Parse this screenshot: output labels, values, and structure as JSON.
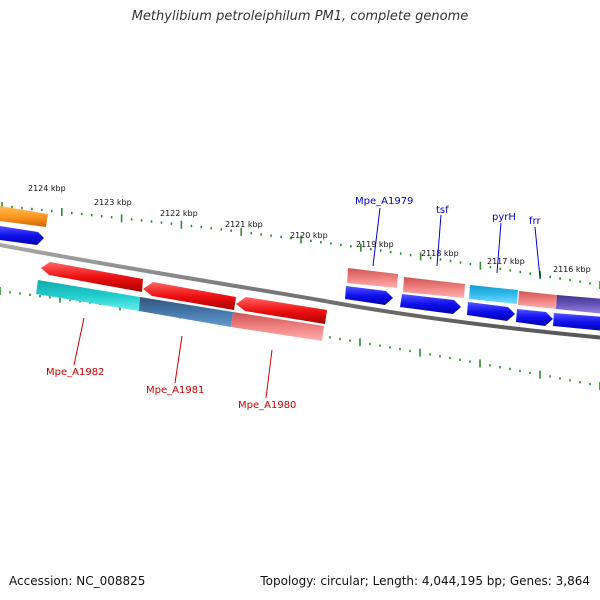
{
  "title": "Methylibium petroleiphilum PM1, complete genome",
  "footer": {
    "accession": "Accession: NC_008825",
    "topology": "Topology: circular; Length: 4,044,195 bp; Genes: 3,864"
  },
  "ticks": [
    {
      "label": "2124 kbp"
    },
    {
      "label": "2123 kbp"
    },
    {
      "label": "2122 kbp"
    },
    {
      "label": "2121 kbp"
    },
    {
      "label": "2120 kbp"
    },
    {
      "label": "2119 kbp"
    },
    {
      "label": "2118 kbp"
    },
    {
      "label": "2117 kbp"
    },
    {
      "label": "2116 kbp"
    }
  ],
  "gene_labels": [
    {
      "name": "Mpe_A1979",
      "strand": "forward",
      "color": "#0000cc"
    },
    {
      "name": "tsf",
      "strand": "forward",
      "color": "#0000cc"
    },
    {
      "name": "pyrH",
      "strand": "forward",
      "color": "#0000cc"
    },
    {
      "name": "frr",
      "strand": "forward",
      "color": "#0000cc"
    },
    {
      "name": "Mpe_A1982",
      "strand": "reverse",
      "color": "#cc0000"
    },
    {
      "name": "Mpe_A1981",
      "strand": "reverse",
      "color": "#cc0000"
    },
    {
      "name": "Mpe_A1980",
      "strand": "reverse",
      "color": "#cc0000"
    }
  ],
  "colors": {
    "backbone": "#888888",
    "ticks": "#2e8b2e",
    "cds_forward": "#1010ee",
    "cds_reverse": "#ee1111",
    "cog_salmon": "#f08080",
    "cog_cyan": "#22cccc",
    "cog_steelblue": "#4477aa",
    "cog_skyblue": "#33bbee",
    "cog_slateblue": "#6655bb",
    "cog_orange": "#ff9922"
  }
}
